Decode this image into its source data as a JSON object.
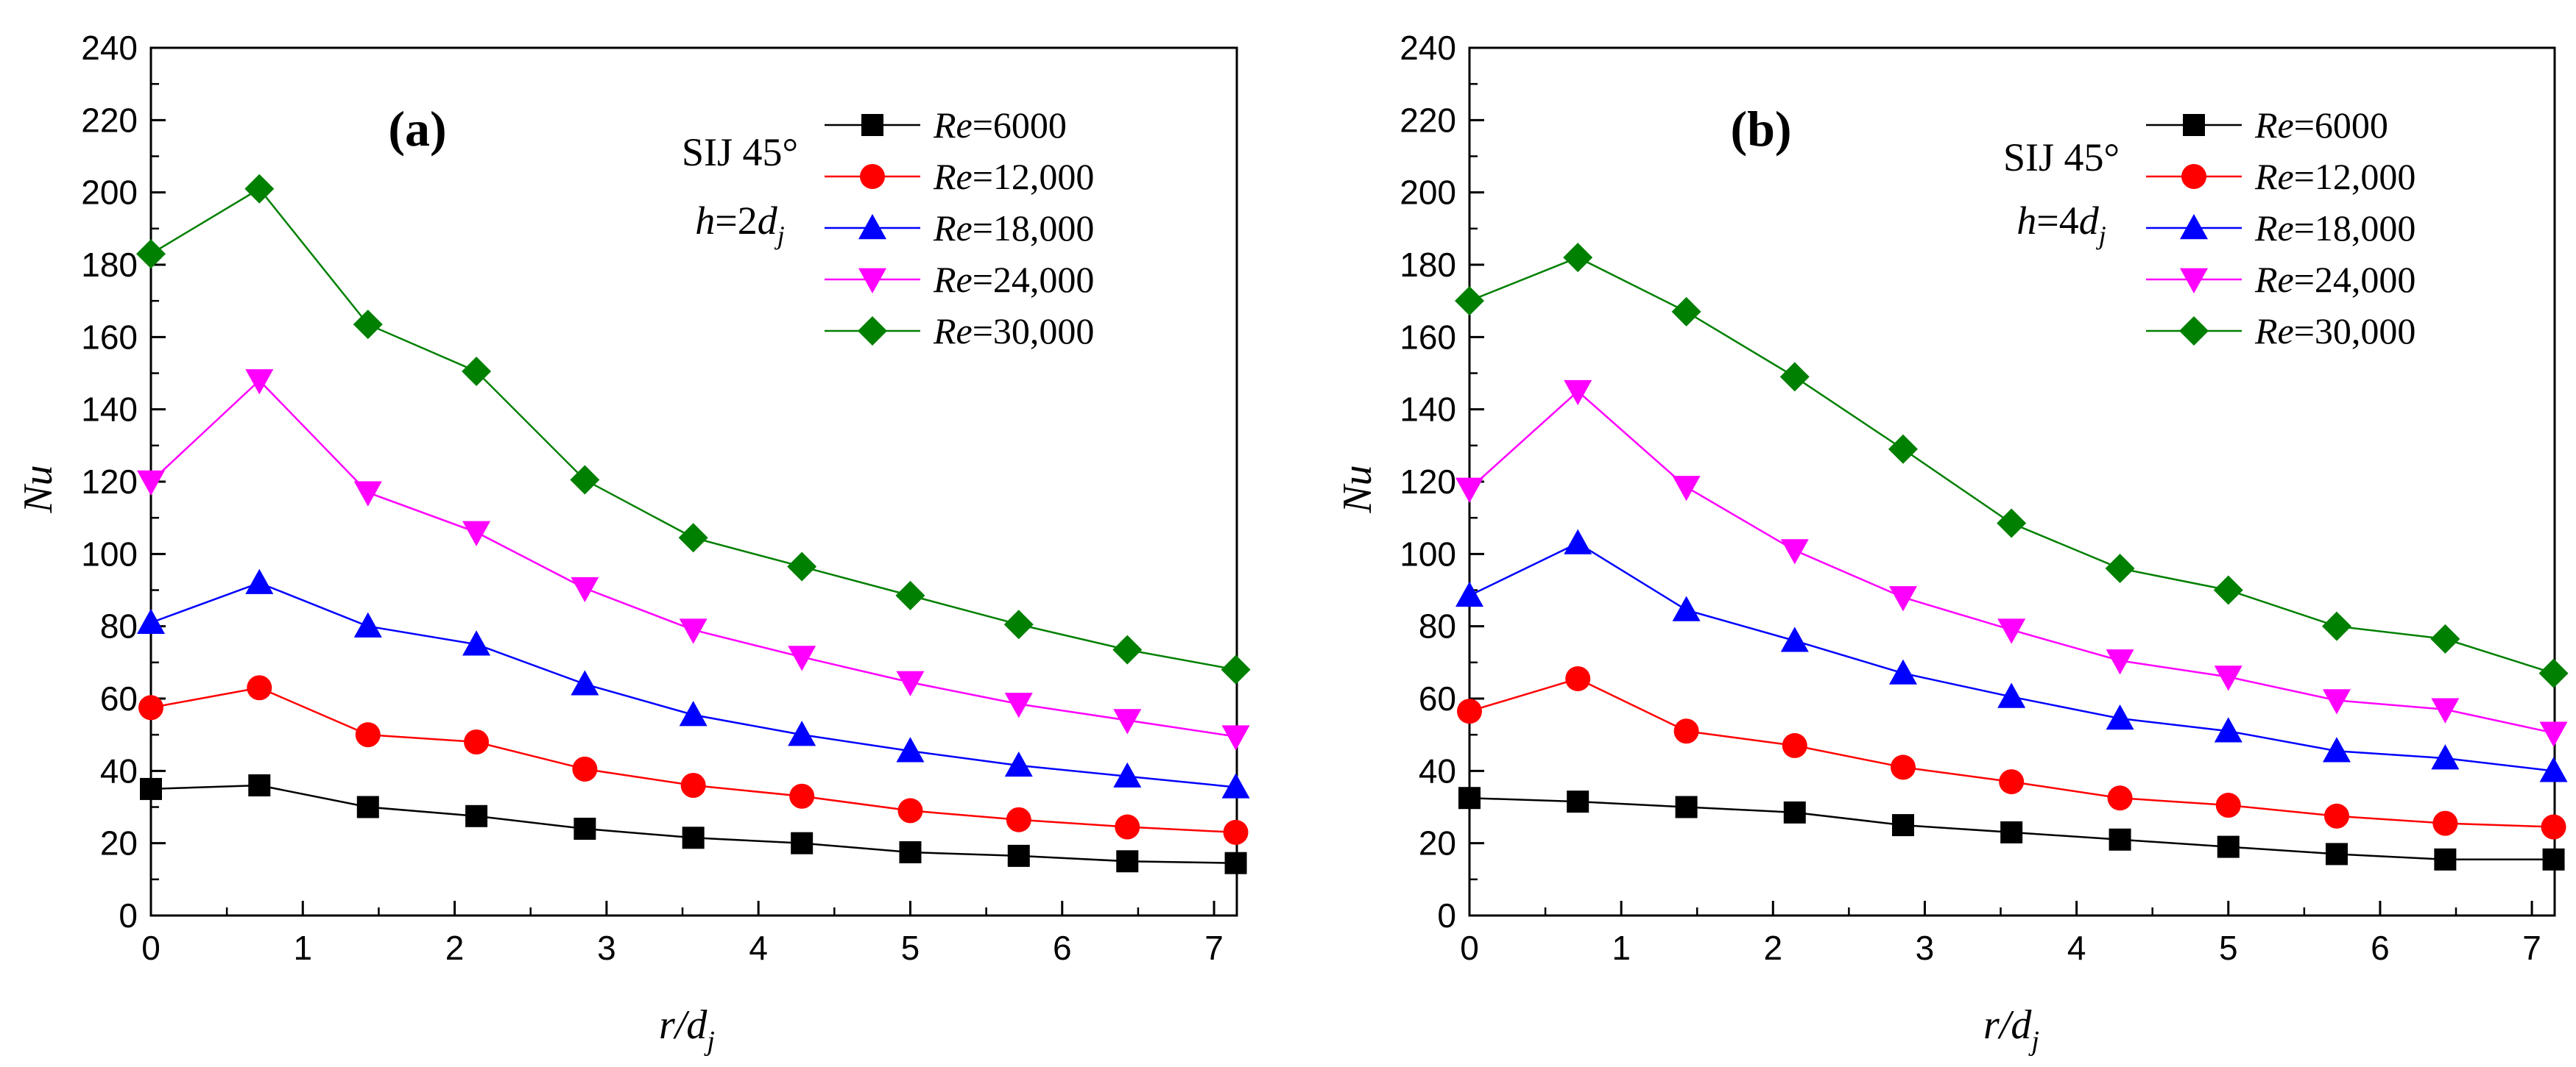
{
  "charts": [
    {
      "panel_label": "(a)",
      "annotation": {
        "line1": "SIJ 45°",
        "h_var": "h",
        "h_eq": "=2",
        "h_d": "d",
        "h_sub": "j"
      }
    },
    {
      "panel_label": "(b)",
      "annotation": {
        "line1": "SIJ 45°",
        "h_var": "h",
        "h_eq": "=4",
        "h_d": "d",
        "h_sub": "j"
      }
    }
  ],
  "legend_prefix": "Re",
  "legend_values": [
    "=6000",
    "=12,000",
    "=18,000",
    "=24,000",
    "=30,000"
  ],
  "axis_labels": {
    "y": "Nu",
    "x_main": "r/d",
    "x_sub": "j"
  },
  "colors": {
    "Re6000": "#000000",
    "Re12000": "#ff0000",
    "Re18000": "#0000ff",
    "Re24000": "#ff00ff",
    "Re30000": "#008000"
  },
  "chart_data": [
    {
      "type": "line",
      "title": "(a)",
      "xlabel": "r/dj",
      "ylabel": "Nu",
      "xlim": [
        0,
        7.15
      ],
      "ylim": [
        0,
        240
      ],
      "xticks": [
        0,
        1,
        2,
        3,
        4,
        5,
        6,
        7
      ],
      "yticks": [
        0,
        20,
        40,
        60,
        80,
        100,
        120,
        140,
        160,
        180,
        200,
        220,
        240
      ],
      "x": [
        0,
        0.714,
        1.429,
        2.143,
        2.857,
        3.571,
        4.286,
        5.0,
        5.714,
        6.429,
        7.143
      ],
      "series": [
        {
          "name": "Re=6000",
          "marker": "square",
          "values": [
            35,
            36,
            30,
            27.5,
            24,
            21.5,
            20,
            17.5,
            16.5,
            15,
            14.5
          ]
        },
        {
          "name": "Re=12,000",
          "marker": "circle",
          "values": [
            57.5,
            63,
            50,
            48,
            40.5,
            36,
            33,
            29,
            26.5,
            24.5,
            23
          ]
        },
        {
          "name": "Re=18,000",
          "marker": "triangle-up",
          "values": [
            81,
            92,
            80,
            75,
            64,
            55.5,
            50,
            45.5,
            41.5,
            38.5,
            35.5
          ]
        },
        {
          "name": "Re=24,000",
          "marker": "triangle-down",
          "values": [
            120,
            148,
            117,
            106,
            90.5,
            79,
            71.5,
            64.5,
            58.5,
            54,
            49.5
          ]
        },
        {
          "name": "Re=30,000",
          "marker": "diamond",
          "values": [
            183,
            201,
            163.5,
            150.5,
            120.5,
            104.5,
            96.5,
            88.5,
            80.5,
            73.5,
            68
          ]
        }
      ]
    },
    {
      "type": "line",
      "title": "(b)",
      "xlabel": "r/dj",
      "ylabel": "Nu",
      "xlim": [
        0,
        7.15
      ],
      "ylim": [
        0,
        240
      ],
      "xticks": [
        0,
        1,
        2,
        3,
        4,
        5,
        6,
        7
      ],
      "yticks": [
        0,
        20,
        40,
        60,
        80,
        100,
        120,
        140,
        160,
        180,
        200,
        220,
        240
      ],
      "x": [
        0,
        0.714,
        1.429,
        2.143,
        2.857,
        3.571,
        4.286,
        5.0,
        5.714,
        6.429,
        7.143
      ],
      "series": [
        {
          "name": "Re=6000",
          "marker": "square",
          "values": [
            32.5,
            31.5,
            30,
            28.5,
            25,
            23,
            21,
            19,
            17,
            15.5,
            15.5
          ]
        },
        {
          "name": "Re=12,000",
          "marker": "circle",
          "values": [
            56.5,
            65.5,
            51,
            47,
            41,
            37,
            32.5,
            30.5,
            27.5,
            25.5,
            24.5
          ]
        },
        {
          "name": "Re=18,000",
          "marker": "triangle-up",
          "values": [
            88.5,
            103,
            84.5,
            76,
            67,
            60.5,
            54.5,
            51,
            45.5,
            43.5,
            40
          ]
        },
        {
          "name": "Re=24,000",
          "marker": "triangle-down",
          "values": [
            118,
            145,
            118.5,
            101,
            88,
            79,
            70.5,
            66,
            59.5,
            57,
            50.5
          ]
        },
        {
          "name": "Re=30,000",
          "marker": "diamond",
          "values": [
            170,
            182,
            167,
            149,
            129,
            108.5,
            96,
            90,
            80,
            76.5,
            67
          ]
        }
      ]
    }
  ]
}
